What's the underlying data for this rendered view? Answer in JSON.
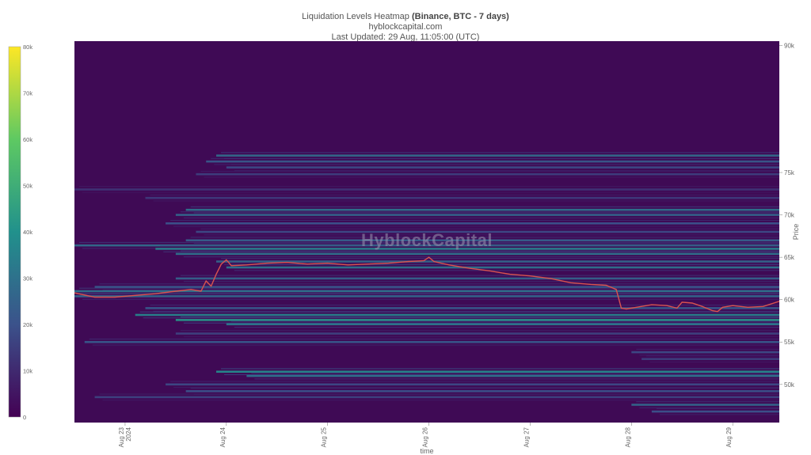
{
  "title": {
    "main": "Liquidation Levels Heatmap",
    "bold": "(Binance, BTC - 7 days)",
    "site": "hyblockcapital.com",
    "updated": "Last Updated: 29 Aug, 11:05:00 (UTC)"
  },
  "watermark": "HyblockCapital",
  "colors": {
    "background": "#3f0a55",
    "price_line": "#d9534f",
    "colorscale": [
      "#440154",
      "#3b528b",
      "#21918c",
      "#5ec962",
      "#fde725"
    ]
  },
  "chart_data": {
    "type": "heatmap",
    "xlabel": "time",
    "ylabel": "Price",
    "ylim": [
      45500,
      90500
    ],
    "y_ticks": [
      "90k",
      "75k",
      "70k",
      "65k",
      "60k",
      "55k",
      "50k"
    ],
    "y_tick_values": [
      90000,
      75000,
      70000,
      65000,
      60000,
      55000,
      50000
    ],
    "x_ticks": [
      {
        "label": "Aug 23",
        "sub": "2024",
        "day": 0
      },
      {
        "label": "Aug 24",
        "sub": "",
        "day": 1
      },
      {
        "label": "Aug 25",
        "sub": "",
        "day": 2
      },
      {
        "label": "Aug 26",
        "sub": "",
        "day": 3
      },
      {
        "label": "Aug 27",
        "sub": "",
        "day": 4
      },
      {
        "label": "Aug 28",
        "sub": "",
        "day": 5
      },
      {
        "label": "Aug 29",
        "sub": "",
        "day": 6
      }
    ],
    "x_range_days": [
      -0.5,
      6.46
    ],
    "colorbar": {
      "ticks": [
        "80k",
        "70k",
        "60k",
        "50k",
        "40k",
        "30k",
        "20k",
        "10k",
        "0"
      ],
      "tick_values": [
        80000,
        70000,
        60000,
        50000,
        40000,
        30000,
        20000,
        10000,
        0
      ],
      "range": [
        0,
        80000
      ]
    },
    "liquidation_bands": [
      {
        "price": 77000,
        "start_day": 0.9,
        "intensity": 28000
      },
      {
        "price": 76300,
        "start_day": 0.8,
        "intensity": 22000
      },
      {
        "price": 75600,
        "start_day": 1.0,
        "intensity": 18000
      },
      {
        "price": 74800,
        "start_day": 0.7,
        "intensity": 15000
      },
      {
        "price": 73000,
        "start_day": -0.5,
        "intensity": 12000
      },
      {
        "price": 72000,
        "start_day": 0.2,
        "intensity": 14000
      },
      {
        "price": 70600,
        "start_day": 0.6,
        "intensity": 30000
      },
      {
        "price": 70000,
        "start_day": 0.5,
        "intensity": 26000
      },
      {
        "price": 69000,
        "start_day": 0.4,
        "intensity": 20000
      },
      {
        "price": 68000,
        "start_day": 0.7,
        "intensity": 18000
      },
      {
        "price": 67000,
        "start_day": 0.6,
        "intensity": 24000
      },
      {
        "price": 66400,
        "start_day": -0.5,
        "intensity": 28000
      },
      {
        "price": 66000,
        "start_day": 0.3,
        "intensity": 34000
      },
      {
        "price": 65400,
        "start_day": 0.5,
        "intensity": 30000
      },
      {
        "price": 64500,
        "start_day": 0.9,
        "intensity": 26000
      },
      {
        "price": 63800,
        "start_day": 1.0,
        "intensity": 30000
      },
      {
        "price": 62500,
        "start_day": 0.5,
        "intensity": 25000
      },
      {
        "price": 61500,
        "start_day": -0.3,
        "intensity": 22000
      },
      {
        "price": 61000,
        "start_day": -0.5,
        "intensity": 30000
      },
      {
        "price": 60400,
        "start_day": -0.5,
        "intensity": 26000
      },
      {
        "price": 59000,
        "start_day": 0.2,
        "intensity": 22000
      },
      {
        "price": 58200,
        "start_day": 0.1,
        "intensity": 36000
      },
      {
        "price": 57600,
        "start_day": 0.5,
        "intensity": 42000
      },
      {
        "price": 57100,
        "start_day": 1.0,
        "intensity": 32000
      },
      {
        "price": 56000,
        "start_day": 0.5,
        "intensity": 16000
      },
      {
        "price": 55000,
        "start_day": -0.4,
        "intensity": 22000
      },
      {
        "price": 53800,
        "start_day": 5.0,
        "intensity": 18000
      },
      {
        "price": 53000,
        "start_day": 5.1,
        "intensity": 15000
      },
      {
        "price": 51500,
        "start_day": 0.9,
        "intensity": 38000
      },
      {
        "price": 51000,
        "start_day": 1.2,
        "intensity": 30000
      },
      {
        "price": 50000,
        "start_day": 0.4,
        "intensity": 18000
      },
      {
        "price": 49200,
        "start_day": 0.6,
        "intensity": 20000
      },
      {
        "price": 48500,
        "start_day": -0.3,
        "intensity": 16000
      },
      {
        "price": 47600,
        "start_day": 5.0,
        "intensity": 26000
      },
      {
        "price": 46800,
        "start_day": 5.2,
        "intensity": 20000
      }
    ],
    "price_series": {
      "name": "",
      "points": [
        [
          -0.5,
          60800
        ],
        [
          -0.3,
          60300
        ],
        [
          -0.1,
          60300
        ],
        [
          0.1,
          60500
        ],
        [
          0.3,
          60700
        ],
        [
          0.5,
          61000
        ],
        [
          0.65,
          61200
        ],
        [
          0.75,
          61000
        ],
        [
          0.8,
          62200
        ],
        [
          0.85,
          61600
        ],
        [
          0.9,
          63000
        ],
        [
          0.95,
          64200
        ],
        [
          1.0,
          64700
        ],
        [
          1.05,
          64000
        ],
        [
          1.2,
          64100
        ],
        [
          1.4,
          64300
        ],
        [
          1.6,
          64400
        ],
        [
          1.8,
          64200
        ],
        [
          2.0,
          64300
        ],
        [
          2.2,
          64100
        ],
        [
          2.4,
          64200
        ],
        [
          2.6,
          64300
        ],
        [
          2.8,
          64500
        ],
        [
          2.95,
          64600
        ],
        [
          3.0,
          65000
        ],
        [
          3.05,
          64500
        ],
        [
          3.2,
          64100
        ],
        [
          3.4,
          63700
        ],
        [
          3.6,
          63400
        ],
        [
          3.8,
          63000
        ],
        [
          4.0,
          62800
        ],
        [
          4.2,
          62500
        ],
        [
          4.4,
          62000
        ],
        [
          4.6,
          61800
        ],
        [
          4.75,
          61700
        ],
        [
          4.85,
          61200
        ],
        [
          4.9,
          59000
        ],
        [
          4.95,
          58900
        ],
        [
          5.05,
          59100
        ],
        [
          5.2,
          59400
        ],
        [
          5.35,
          59300
        ],
        [
          5.45,
          59000
        ],
        [
          5.5,
          59700
        ],
        [
          5.6,
          59600
        ],
        [
          5.7,
          59200
        ],
        [
          5.8,
          58700
        ],
        [
          5.85,
          58600
        ],
        [
          5.9,
          59100
        ],
        [
          6.0,
          59300
        ],
        [
          6.15,
          59100
        ],
        [
          6.3,
          59200
        ],
        [
          6.46,
          59800
        ]
      ]
    }
  }
}
